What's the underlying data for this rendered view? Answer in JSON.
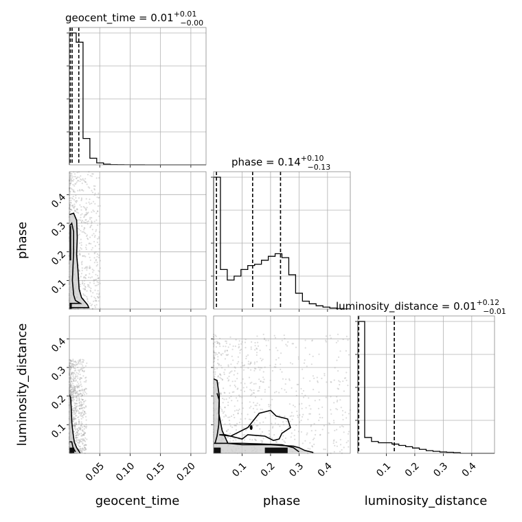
{
  "chart_data": {
    "type": "corner",
    "parameters": [
      "geocent_time",
      "phase",
      "luminosity_distance"
    ],
    "axis_labels": {
      "x": [
        "geocent_time",
        "phase",
        "luminosity_distance"
      ],
      "y": [
        "",
        "phase",
        "luminosity_distance"
      ]
    },
    "ranges": [
      [
        0.0,
        0.225
      ],
      [
        0.0,
        0.48
      ],
      [
        0.0,
        0.48
      ]
    ],
    "grid": true,
    "ticks": [
      {
        "values": [
          0.05,
          0.1,
          0.15,
          0.2
        ],
        "labels": [
          "0.05",
          "0.10",
          "0.15",
          "0.20"
        ]
      },
      {
        "values": [
          0.1,
          0.2,
          0.3,
          0.4
        ],
        "labels": [
          "0.1",
          "0.2",
          "0.3",
          "0.4"
        ]
      },
      {
        "values": [
          0.1,
          0.2,
          0.3,
          0.4
        ],
        "labels": [
          "0.1",
          "0.2",
          "0.3",
          "0.4"
        ]
      }
    ],
    "titles": [
      {
        "name": "geocent_time",
        "median": "0.01",
        "plus": "+0.01",
        "minus": "−0.00"
      },
      {
        "name": "phase",
        "median": "0.14",
        "plus": "+0.10",
        "minus": "−0.13"
      },
      {
        "name": "luminosity_distance",
        "median": "0.01",
        "plus": "+0.12",
        "minus": "−0.01"
      }
    ],
    "histograms": [
      {
        "param": "geocent_time",
        "bin_width": 0.01125,
        "counts": [
          1.0,
          0.93,
          0.2,
          0.05,
          0.015,
          0.005,
          0.002,
          0.001,
          0.0005,
          0.0003,
          0.0002,
          0.0001,
          0.0001,
          0.0,
          0.0,
          0.0,
          0.0,
          0.0,
          0.0,
          0.0
        ],
        "quantiles": [
          0.0015,
          0.0045,
          0.0155
        ]
      },
      {
        "param": "phase",
        "bin_width": 0.024,
        "counts": [
          1.0,
          0.3,
          0.22,
          0.25,
          0.3,
          0.33,
          0.34,
          0.37,
          0.4,
          0.42,
          0.39,
          0.26,
          0.12,
          0.06,
          0.04,
          0.025,
          0.015,
          0.008,
          0.004,
          0.002
        ],
        "quantiles": [
          0.01,
          0.137,
          0.235
        ]
      },
      {
        "param": "luminosity_distance",
        "bin_width": 0.024,
        "counts": [
          1.0,
          0.12,
          0.09,
          0.08,
          0.08,
          0.07,
          0.06,
          0.05,
          0.04,
          0.03,
          0.02,
          0.015,
          0.01,
          0.008,
          0.005,
          0.0,
          0.0,
          0.0,
          0.0,
          0.0
        ],
        "quantiles": [
          0.003,
          0.128
        ]
      }
    ],
    "contours_2d": [
      {
        "x_param": "geocent_time",
        "y_param": "phase",
        "levels": [
          [
            [
              0.0,
              0.33
            ],
            [
              0.007,
              0.335
            ],
            [
              0.012,
              0.31
            ],
            [
              0.013,
              0.25
            ],
            [
              0.012,
              0.19
            ],
            [
              0.014,
              0.14
            ],
            [
              0.016,
              0.07
            ],
            [
              0.02,
              0.04
            ],
            [
              0.03,
              0.015
            ],
            [
              0.032,
              0.005
            ],
            [
              0.0,
              0.005
            ]
          ],
          [
            [
              0.0,
              0.29
            ],
            [
              0.004,
              0.3
            ],
            [
              0.007,
              0.27
            ],
            [
              0.007,
              0.2
            ],
            [
              0.006,
              0.15
            ],
            [
              0.005,
              0.1
            ],
            [
              0.007,
              0.05
            ],
            [
              0.01,
              0.03
            ],
            [
              0.018,
              0.02
            ],
            [
              0.0,
              0.02
            ]
          ]
        ],
        "dense": [
          [
            0.0,
            0.0,
            0.004,
            0.02
          ],
          [
            0.0,
            0.17,
            0.003,
            0.29
          ]
        ]
      },
      {
        "x_param": "geocent_time",
        "y_param": "luminosity_distance",
        "levels": [
          [
            [
              0.0,
              0.205
            ],
            [
              0.002,
              0.195
            ],
            [
              0.003,
              0.16
            ],
            [
              0.004,
              0.11
            ],
            [
              0.006,
              0.07
            ],
            [
              0.008,
              0.04
            ],
            [
              0.012,
              0.02
            ],
            [
              0.018,
              0.0
            ]
          ],
          [
            [
              0.0,
              0.04
            ],
            [
              0.004,
              0.04
            ],
            [
              0.006,
              0.02
            ],
            [
              0.01,
              0.005
            ]
          ]
        ],
        "dense": [
          [
            0.0,
            0.0,
            0.008,
            0.02
          ]
        ]
      },
      {
        "x_param": "phase",
        "y_param": "luminosity_distance",
        "levels": [
          [
            [
              0.0,
              0.26
            ],
            [
              0.012,
              0.255
            ],
            [
              0.02,
              0.2
            ],
            [
              0.018,
              0.14
            ],
            [
              0.03,
              0.08
            ],
            [
              0.05,
              0.035
            ],
            [
              0.1,
              0.03
            ],
            [
              0.2,
              0.03
            ],
            [
              0.28,
              0.025
            ],
            [
              0.3,
              0.02
            ],
            [
              0.32,
              0.01
            ],
            [
              0.35,
              0.003
            ]
          ],
          [
            [
              0.012,
              0.21
            ],
            [
              0.02,
              0.185
            ],
            [
              0.018,
              0.1
            ],
            [
              0.012,
              0.06
            ],
            [
              0.005,
              0.035
            ]
          ],
          [
            [
              0.02,
              0.065
            ],
            [
              0.06,
              0.06
            ],
            [
              0.08,
              0.07
            ],
            [
              0.12,
              0.09
            ],
            [
              0.16,
              0.14
            ],
            [
              0.2,
              0.15
            ],
            [
              0.22,
              0.13
            ],
            [
              0.26,
              0.12
            ],
            [
              0.27,
              0.09
            ],
            [
              0.24,
              0.07
            ],
            [
              0.23,
              0.05
            ],
            [
              0.21,
              0.045
            ],
            [
              0.18,
              0.06
            ],
            [
              0.12,
              0.065
            ],
            [
              0.1,
              0.05
            ],
            [
              0.08,
              0.055
            ],
            [
              0.04,
              0.065
            ],
            [
              0.02,
              0.065
            ]
          ],
          [
            [
              0.0,
              0.035
            ],
            [
              0.1,
              0.035
            ],
            [
              0.24,
              0.03
            ],
            [
              0.28,
              0.02
            ],
            [
              0.3,
              0.005
            ]
          ]
        ],
        "dense": [
          [
            0.0,
            0.0,
            0.025,
            0.02
          ],
          [
            0.18,
            0.0,
            0.26,
            0.02
          ]
        ],
        "points": [
          [
            0.132,
            0.09
          ]
        ]
      }
    ]
  }
}
